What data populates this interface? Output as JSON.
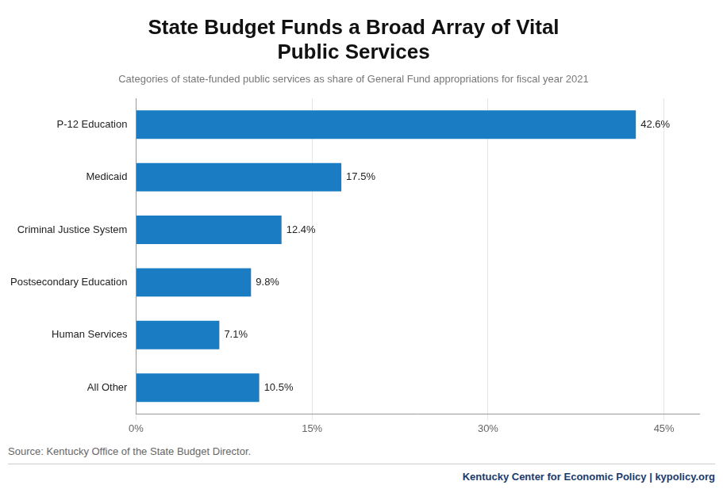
{
  "chart_data": {
    "type": "bar",
    "orientation": "horizontal",
    "title": "State Budget Funds a Broad Array of Vital\nPublic Services",
    "subtitle": "Categories of state-funded public services as share of General Fund appropriations for fiscal year 2021",
    "categories": [
      "P-12 Education",
      "Medicaid",
      "Criminal Justice System",
      "Postsecondary Education",
      "Human Services",
      "All Other"
    ],
    "values": [
      42.6,
      17.5,
      12.4,
      9.8,
      7.1,
      10.5
    ],
    "value_labels": [
      "42.6%",
      "17.5%",
      "12.4%",
      "9.8%",
      "7.1%",
      "10.5%"
    ],
    "data_labels": true,
    "color": "#1a7dc4",
    "xlim": [
      0,
      48
    ],
    "xticks": [
      {
        "value": 0,
        "label": "0%"
      },
      {
        "value": 15,
        "label": "15%"
      },
      {
        "value": 30,
        "label": "30%"
      },
      {
        "value": 45,
        "label": "45%"
      }
    ],
    "grid": true,
    "annotations": [
      "Source: Kentucky Office of the State Budget Director.",
      "Kentucky Center for Economic Policy | kypolicy.org"
    ]
  }
}
